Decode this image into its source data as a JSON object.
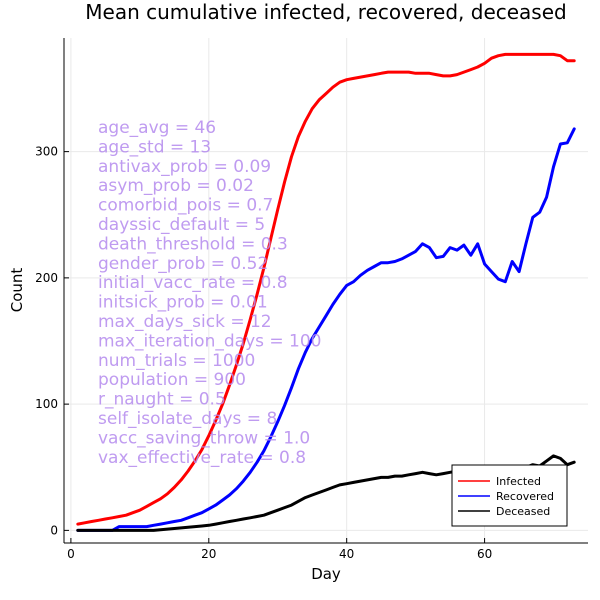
{
  "chart_data": {
    "type": "line",
    "title": "Mean cumulative infected, recovered, deceased",
    "xlabel": "Day",
    "ylabel": "Count",
    "xlim": [
      -1,
      75
    ],
    "ylim": [
      -10,
      390
    ],
    "xticks": [
      0,
      20,
      40,
      60
    ],
    "yticks": [
      0,
      100,
      200,
      300
    ],
    "grid": true,
    "legend_position": "bottom-right",
    "series": [
      {
        "name": "Infected",
        "color": "#ff0000",
        "x": [
          1,
          2,
          3,
          4,
          5,
          6,
          7,
          8,
          9,
          10,
          11,
          12,
          13,
          14,
          15,
          16,
          17,
          18,
          19,
          20,
          21,
          22,
          23,
          24,
          25,
          26,
          27,
          28,
          29,
          30,
          31,
          32,
          33,
          34,
          35,
          36,
          37,
          38,
          39,
          40,
          41,
          42,
          43,
          44,
          45,
          46,
          47,
          48,
          49,
          50,
          51,
          52,
          53,
          54,
          55,
          56,
          57,
          58,
          59,
          60,
          61,
          62,
          63,
          64,
          65,
          66,
          67,
          68,
          69,
          70,
          71,
          72,
          73
        ],
        "y": [
          5,
          6,
          7,
          8,
          9,
          10,
          11,
          12,
          14,
          16,
          19,
          22,
          25,
          29,
          34,
          40,
          47,
          55,
          64,
          75,
          87,
          100,
          115,
          131,
          148,
          167,
          187,
          208,
          231,
          254,
          276,
          296,
          312,
          324,
          334,
          341,
          346,
          351,
          355,
          357,
          358,
          359,
          360,
          361,
          362,
          363,
          363,
          363,
          363,
          362,
          362,
          362,
          361,
          360,
          360,
          361,
          363,
          365,
          367,
          370,
          374,
          376,
          377,
          377,
          377,
          377,
          377,
          377,
          377,
          377,
          376,
          372,
          372
        ]
      },
      {
        "name": "Recovered",
        "color": "#0000ff",
        "x": [
          1,
          2,
          3,
          4,
          5,
          6,
          7,
          8,
          9,
          10,
          11,
          12,
          13,
          14,
          15,
          16,
          17,
          18,
          19,
          20,
          21,
          22,
          23,
          24,
          25,
          26,
          27,
          28,
          29,
          30,
          31,
          32,
          33,
          34,
          35,
          36,
          37,
          38,
          39,
          40,
          41,
          42,
          43,
          44,
          45,
          46,
          47,
          48,
          49,
          50,
          51,
          52,
          53,
          54,
          55,
          56,
          57,
          58,
          59,
          60,
          61,
          62,
          63,
          64,
          65,
          66,
          67,
          68,
          69,
          70,
          71,
          72,
          73
        ],
        "y": [
          0,
          0,
          0,
          0,
          0,
          0,
          3,
          3,
          3,
          3,
          3,
          4,
          5,
          6,
          7,
          8,
          10,
          12,
          14,
          17,
          20,
          24,
          28,
          33,
          39,
          46,
          54,
          63,
          74,
          86,
          99,
          113,
          128,
          141,
          152,
          161,
          170,
          179,
          187,
          194,
          197,
          202,
          206,
          209,
          212,
          212,
          213,
          215,
          218,
          221,
          227,
          224,
          216,
          217,
          224,
          222,
          226,
          218,
          227,
          211,
          205,
          199,
          197,
          213,
          205,
          227,
          248,
          252,
          264,
          288,
          306,
          307,
          318
        ]
      },
      {
        "name": "Deceased",
        "color": "#000000",
        "x": [
          1,
          2,
          3,
          4,
          5,
          6,
          7,
          8,
          9,
          10,
          11,
          12,
          13,
          14,
          15,
          16,
          17,
          18,
          19,
          20,
          21,
          22,
          23,
          24,
          25,
          26,
          27,
          28,
          29,
          30,
          31,
          32,
          33,
          34,
          35,
          36,
          37,
          38,
          39,
          40,
          41,
          42,
          43,
          44,
          45,
          46,
          47,
          48,
          49,
          50,
          51,
          52,
          53,
          54,
          55,
          56,
          57,
          58,
          59,
          60,
          61,
          62,
          63,
          64,
          65,
          66,
          67,
          68,
          69,
          70,
          71,
          72,
          73
        ],
        "y": [
          0,
          0,
          0,
          0,
          0,
          0,
          0,
          0,
          0,
          0,
          0,
          0,
          0.5,
          1,
          1.5,
          2,
          2.5,
          3,
          3.5,
          4,
          5,
          6,
          7,
          8,
          9,
          10,
          11,
          12,
          14,
          16,
          18,
          20,
          23,
          26,
          28,
          30,
          32,
          34,
          36,
          37,
          38,
          39,
          40,
          41,
          42,
          42,
          43,
          43,
          44,
          45,
          46,
          45,
          44,
          45,
          46,
          47,
          48,
          48,
          47,
          47,
          46,
          46,
          47,
          48,
          49,
          50,
          52,
          51,
          55,
          59,
          57,
          52,
          54
        ]
      }
    ],
    "annotations": [
      "age_avg = 46",
      "age_std = 13",
      "antivax_prob = 0.09",
      "asym_prob = 0.02",
      "comorbid_pois = 0.7",
      "dayssic_default = 5",
      "death_threshold = 0.3",
      "gender_prob = 0.52",
      "initial_vacc_rate = 0.8",
      "initsick_prob = 0.01",
      "max_days_sick = 12",
      "max_iteration_days = 100",
      "num_trials = 1000",
      "population = 900",
      "r_naught = 0.5",
      "self_isolate_days = 8",
      "vacc_saving_throw = 1.0",
      "vax_effective_rate = 0.8"
    ]
  }
}
